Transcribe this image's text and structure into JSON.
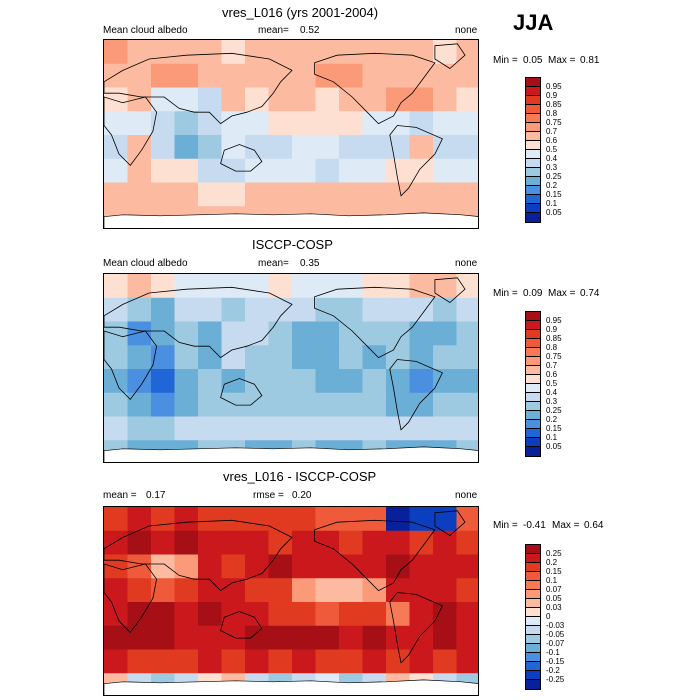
{
  "season": "JJA",
  "chart_data": [
    {
      "type": "heatmap",
      "title": "vres_L016 (yrs 2001-2004)",
      "left_label": "Mean cloud albedo",
      "stat_label": "mean=",
      "stat_value": "0.52",
      "right_label": "none",
      "min_label": "Min =",
      "min_value": "0.05",
      "max_label": "Max =",
      "max_value": "0.81",
      "levels": [
        "0.95",
        "0.9",
        "0.85",
        "0.8",
        "0.75",
        "0.7",
        "0.6",
        "0.5",
        "0.4",
        "0.3",
        "0.25",
        "0.2",
        "0.15",
        "0.1",
        "0.05"
      ],
      "colors": [
        "#a50f15",
        "#cb181d",
        "#e03b21",
        "#ef5b3a",
        "#f67a55",
        "#fb9a78",
        "#fcbba1",
        "#fee0d2",
        "#deebf7",
        "#c6dbef",
        "#9ecae1",
        "#6baed6",
        "#4a8fe0",
        "#2166d6",
        "#0b3fc0",
        "#08209a"
      ],
      "field": [
        [
          5,
          6,
          6,
          6,
          6,
          7,
          6,
          6,
          6,
          6,
          6,
          6,
          6,
          6,
          7,
          6
        ],
        [
          6,
          6,
          5,
          5,
          6,
          6,
          6,
          6,
          6,
          5,
          5,
          6,
          6,
          6,
          6,
          6
        ],
        [
          7,
          6,
          8,
          8,
          9,
          6,
          7,
          6,
          6,
          7,
          6,
          6,
          5,
          5,
          6,
          7
        ],
        [
          8,
          8,
          9,
          10,
          9,
          8,
          8,
          7,
          7,
          7,
          7,
          8,
          8,
          9,
          8,
          8
        ],
        [
          9,
          6,
          9,
          11,
          10,
          8,
          9,
          9,
          8,
          8,
          9,
          9,
          9,
          6,
          9,
          9
        ],
        [
          8,
          6,
          7,
          7,
          9,
          9,
          8,
          8,
          8,
          9,
          8,
          8,
          7,
          7,
          8,
          8
        ],
        [
          6,
          6,
          6,
          6,
          7,
          7,
          6,
          6,
          6,
          6,
          6,
          6,
          6,
          6,
          6,
          6
        ],
        [
          6,
          6,
          6,
          6,
          6,
          6,
          6,
          6,
          6,
          6,
          6,
          6,
          6,
          6,
          6,
          6
        ]
      ]
    },
    {
      "type": "heatmap",
      "title": "ISCCP-COSP",
      "left_label": "Mean cloud albedo",
      "stat_label": "mean=",
      "stat_value": "0.35",
      "right_label": "none",
      "min_label": "Min =",
      "min_value": "0.09",
      "max_label": "Max =",
      "max_value": "0.74",
      "levels": [
        "0.95",
        "0.9",
        "0.85",
        "0.8",
        "0.75",
        "0.7",
        "0.6",
        "0.5",
        "0.4",
        "0.3",
        "0.25",
        "0.2",
        "0.15",
        "0.1",
        "0.05"
      ],
      "colors": [
        "#a50f15",
        "#cb181d",
        "#e03b21",
        "#ef5b3a",
        "#f67a55",
        "#fb9a78",
        "#fcbba1",
        "#fee0d2",
        "#deebf7",
        "#c6dbef",
        "#9ecae1",
        "#6baed6",
        "#4a8fe0",
        "#2166d6",
        "#0b3fc0",
        "#08209a"
      ],
      "field": [
        [
          7,
          6,
          7,
          8,
          8,
          8,
          8,
          7,
          8,
          8,
          8,
          7,
          7,
          6,
          6,
          7
        ],
        [
          9,
          10,
          11,
          9,
          9,
          10,
          9,
          9,
          9,
          10,
          10,
          9,
          9,
          9,
          10,
          9
        ],
        [
          10,
          12,
          11,
          10,
          11,
          9,
          9,
          10,
          11,
          11,
          10,
          10,
          10,
          11,
          11,
          10
        ],
        [
          10,
          11,
          12,
          10,
          11,
          9,
          10,
          10,
          11,
          11,
          10,
          11,
          10,
          11,
          10,
          10
        ],
        [
          11,
          12,
          13,
          11,
          10,
          11,
          10,
          10,
          10,
          11,
          11,
          10,
          11,
          12,
          11,
          11
        ],
        [
          10,
          11,
          12,
          11,
          10,
          10,
          10,
          10,
          10,
          10,
          10,
          10,
          11,
          11,
          10,
          10
        ],
        [
          9,
          10,
          10,
          9,
          9,
          9,
          9,
          9,
          9,
          9,
          9,
          9,
          9,
          9,
          9,
          9
        ],
        [
          10,
          11,
          11,
          11,
          10,
          10,
          11,
          11,
          10,
          11,
          11,
          10,
          11,
          11,
          11,
          10
        ]
      ]
    },
    {
      "type": "heatmap",
      "title": "vres_L016 - ISCCP-COSP",
      "left_label": "mean =",
      "left_value": "0.17",
      "stat_label": "rmse =",
      "stat_value": "0.20",
      "right_label": "none",
      "min_label": "Min =",
      "min_value": "-0.41",
      "max_label": "Max =",
      "max_value": "0.64",
      "levels": [
        "0.25",
        "0.2",
        "0.15",
        "0.1",
        "0.07",
        "0.05",
        "0.03",
        "0",
        "-0.03",
        "-0.05",
        "-0.07",
        "-0.1",
        "-0.15",
        "-0.2",
        "-0.25"
      ],
      "colors": [
        "#a50f15",
        "#cb181d",
        "#e03b21",
        "#ef5b3a",
        "#f67a55",
        "#fb9a78",
        "#fcbba1",
        "#fee0d2",
        "#deebf7",
        "#c6dbef",
        "#9ecae1",
        "#6baed6",
        "#4a8fe0",
        "#2166d6",
        "#0b3fc0",
        "#08209a"
      ],
      "field": [
        [
          2,
          1,
          2,
          1,
          2,
          2,
          2,
          2,
          2,
          3,
          3,
          3,
          15,
          14,
          14,
          3
        ],
        [
          1,
          0,
          1,
          0,
          1,
          1,
          1,
          2,
          1,
          1,
          2,
          1,
          1,
          2,
          1,
          2
        ],
        [
          2,
          3,
          6,
          5,
          1,
          2,
          1,
          0,
          1,
          1,
          1,
          1,
          0,
          1,
          1,
          1
        ],
        [
          1,
          2,
          3,
          2,
          1,
          1,
          2,
          2,
          5,
          6,
          6,
          5,
          1,
          1,
          1,
          2
        ],
        [
          1,
          0,
          0,
          1,
          0,
          1,
          1,
          2,
          2,
          3,
          2,
          2,
          4,
          1,
          0,
          1
        ],
        [
          0,
          0,
          0,
          1,
          1,
          1,
          0,
          0,
          0,
          0,
          1,
          0,
          1,
          1,
          0,
          1
        ],
        [
          1,
          2,
          2,
          2,
          1,
          2,
          1,
          2,
          1,
          2,
          2,
          1,
          2,
          1,
          2,
          1
        ],
        [
          6,
          9,
          10,
          9,
          7,
          6,
          9,
          10,
          9,
          8,
          10,
          9,
          6,
          7,
          9,
          10
        ]
      ]
    }
  ]
}
